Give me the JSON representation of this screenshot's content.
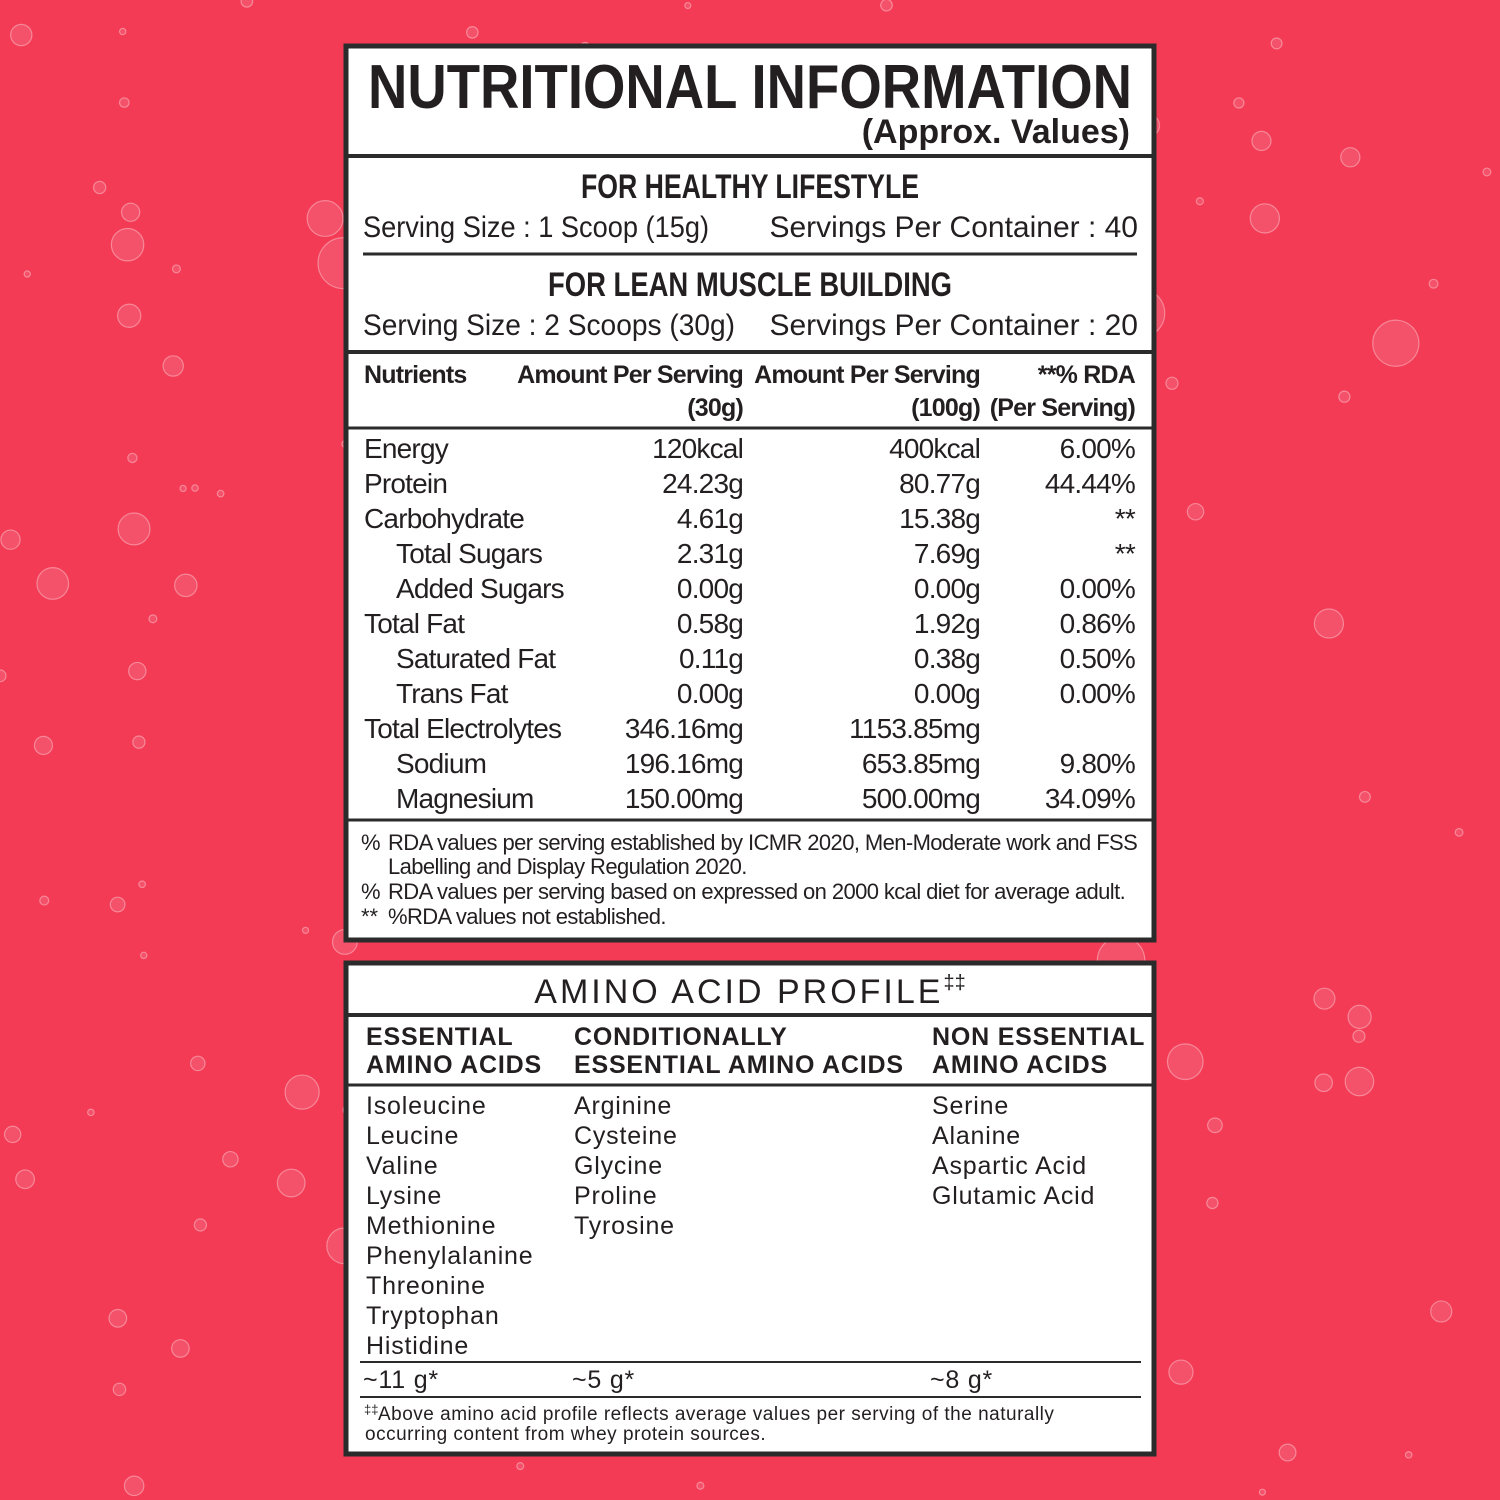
{
  "title": "NUTRITIONAL INFORMATION",
  "subtitle": "(Approx. Values)",
  "servings": [
    {
      "heading": "FOR HEALTHY LIFESTYLE",
      "serving_size": "Serving Size : 1 Scoop (15g)",
      "servings_per_container": "Servings Per Container : 40"
    },
    {
      "heading": "FOR LEAN MUSCLE BUILDING",
      "serving_size": "Serving Size : 2 Scoops (30g)",
      "servings_per_container": "Servings Per Container : 20"
    }
  ],
  "nutrition_table": {
    "headers": [
      [
        "Nutrients"
      ],
      [
        "Amount Per Serving",
        "(30g)"
      ],
      [
        "Amount Per Serving",
        "(100g)"
      ],
      [
        "**% RDA",
        "(Per Serving)"
      ]
    ],
    "rows": [
      {
        "cells": [
          "Energy",
          "120kcal",
          "400kcal",
          "6.00%"
        ],
        "indented": false
      },
      {
        "cells": [
          "Protein",
          "24.23g",
          "80.77g",
          "44.44%"
        ],
        "indented": false
      },
      {
        "cells": [
          "Carbohydrate",
          "4.61g",
          "15.38g",
          "**"
        ],
        "indented": false
      },
      {
        "cells": [
          "Total Sugars",
          "2.31g",
          "7.69g",
          "**"
        ],
        "indented": true
      },
      {
        "cells": [
          "Added Sugars",
          "0.00g",
          "0.00g",
          "0.00%"
        ],
        "indented": true
      },
      {
        "cells": [
          "Total Fat",
          "0.58g",
          "1.92g",
          "0.86%"
        ],
        "indented": false
      },
      {
        "cells": [
          "Saturated Fat",
          "0.11g",
          "0.38g",
          "0.50%"
        ],
        "indented": true
      },
      {
        "cells": [
          "Trans Fat",
          "0.00g",
          "0.00g",
          "0.00%"
        ],
        "indented": true
      },
      {
        "cells": [
          "Total Electrolytes",
          "346.16mg",
          "1153.85mg"
        ],
        "indented": false
      },
      {
        "cells": [
          "Sodium",
          "196.16mg",
          "653.85mg",
          "9.80%"
        ],
        "indented": true
      },
      {
        "cells": [
          "Magnesium",
          "150.00mg",
          "500.00mg",
          "34.09%"
        ],
        "indented": true
      }
    ]
  },
  "footnotes": [
    {
      "marker": "%",
      "lines": [
        "RDA values per serving established by ICMR 2020, Men-Moderate work and FSS",
        "Labelling and Display Regulation 2020."
      ]
    },
    {
      "marker": "%",
      "lines": [
        "RDA values per serving based on expressed on 2000 kcal diet for average adult."
      ]
    },
    {
      "marker": "**",
      "lines": [
        "%RDA values not established."
      ]
    }
  ],
  "amino_acid_profile": {
    "title": "AMINO ACID PROFILE",
    "title_mark": "‡‡",
    "columns": [
      {
        "heading": [
          "ESSENTIAL",
          "AMINO ACIDS"
        ],
        "items": [
          "Isoleucine",
          "Leucine",
          "Valine",
          "Lysine",
          "Methionine",
          "Phenylalanine",
          "Threonine",
          "Tryptophan",
          "Histidine"
        ],
        "total": "~11 g*"
      },
      {
        "heading": [
          "CONDITIONALLY",
          "ESSENTIAL AMINO ACIDS"
        ],
        "items": [
          "Arginine",
          "Cysteine",
          "Glycine",
          "Proline",
          "Tyrosine"
        ],
        "total": "~5 g*"
      },
      {
        "heading": [
          "NON ESSENTIAL",
          "AMINO ACIDS"
        ],
        "items": [
          "Serine",
          "Alanine",
          "Aspartic Acid",
          "Glutamic Acid"
        ],
        "total": "~8 g*"
      }
    ],
    "footnote": {
      "mark": "‡‡",
      "lines": [
        "Above amino acid profile reflects average values per serving of the naturally",
        "occurring content from whey protein sources."
      ]
    }
  }
}
